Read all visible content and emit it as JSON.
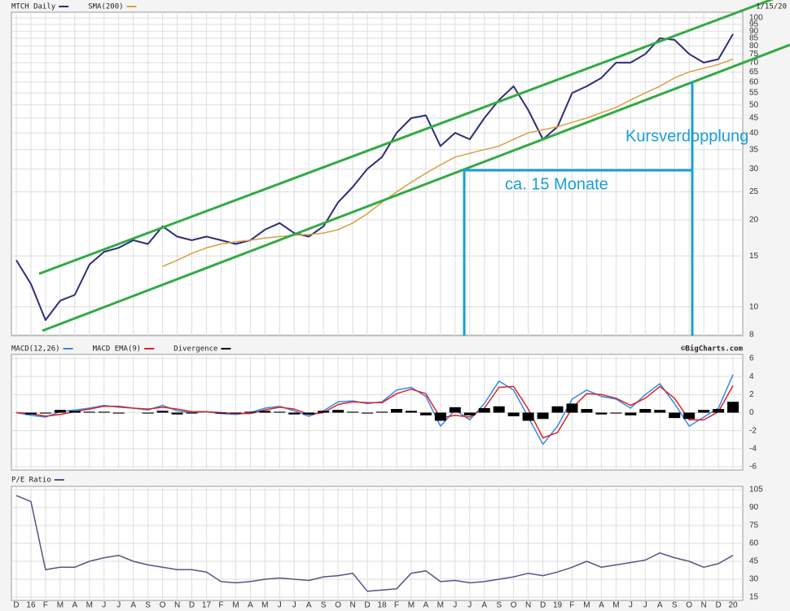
{
  "chart_data": [
    {
      "type": "line",
      "log": true,
      "grid": true,
      "date_label": "1/15/20",
      "annotations": [
        "Kursverdopplung",
        "ca. 15 Monate"
      ],
      "categories": [
        "D",
        "16",
        "F",
        "M",
        "A",
        "M",
        "J",
        "J",
        "A",
        "S",
        "O",
        "N",
        "D",
        "17",
        "F",
        "M",
        "A",
        "M",
        "J",
        "J",
        "A",
        "S",
        "O",
        "N",
        "D",
        "18",
        "F",
        "M",
        "A",
        "M",
        "J",
        "J",
        "A",
        "S",
        "O",
        "N",
        "D",
        "19",
        "F",
        "M",
        "A",
        "M",
        "J",
        "J",
        "A",
        "S",
        "O",
        "N",
        "D",
        "20"
      ],
      "ylim": [
        8,
        100
      ],
      "yticks": [
        8,
        10,
        15,
        20,
        25,
        30,
        35,
        40,
        45,
        50,
        55,
        60,
        65,
        70,
        75,
        80,
        85,
        90,
        95,
        100
      ],
      "series": [
        {
          "name": "MTCH Daily",
          "color": "#2e2e78",
          "values": [
            14.5,
            12,
            9,
            10.5,
            11,
            14,
            15.5,
            16,
            17,
            16.5,
            19,
            17.5,
            17,
            17.5,
            17,
            16.5,
            17,
            18.5,
            19.5,
            18,
            17.5,
            19,
            23,
            26,
            30,
            33,
            40,
            45,
            46,
            36,
            40,
            38,
            45,
            52,
            58,
            48,
            38,
            42,
            55,
            58,
            62,
            70,
            70,
            75,
            85,
            84,
            75,
            70,
            72,
            88
          ]
        },
        {
          "name": "SMA(200)",
          "color": "#d9a040",
          "values": [
            null,
            null,
            null,
            null,
            null,
            null,
            null,
            null,
            null,
            null,
            13.8,
            14.5,
            15.3,
            16,
            16.5,
            16.8,
            17,
            17.3,
            17.5,
            17.7,
            17.8,
            18,
            18.5,
            19.5,
            21,
            23,
            25,
            27,
            29,
            31,
            33,
            34,
            35,
            36,
            38,
            40,
            41,
            42,
            43.5,
            45,
            47,
            49,
            52,
            55,
            58,
            62,
            65,
            67,
            69,
            72
          ]
        }
      ]
    },
    {
      "type": "line",
      "grid": true,
      "source": "©BigCharts.com",
      "ylim": [
        -6,
        6
      ],
      "yticks": [
        -6,
        -4,
        -2,
        0,
        2,
        4,
        6
      ],
      "series": [
        {
          "name": "MACD(12,26)",
          "color": "#3388ee",
          "values": [
            0,
            -0.3,
            -0.5,
            0.1,
            0.3,
            0.5,
            0.8,
            0.6,
            0.5,
            0.3,
            0.8,
            0.2,
            0,
            0.1,
            -0.1,
            -0.2,
            0,
            0.5,
            0.7,
            0.2,
            -0.4,
            0.2,
            1.2,
            1.3,
            1,
            1.2,
            2.5,
            2.8,
            1.8,
            -1.5,
            0.3,
            -0.8,
            1,
            3.5,
            2.5,
            -0.5,
            -3.5,
            -1.5,
            1.5,
            2.5,
            1.8,
            1.5,
            0.5,
            2,
            3.2,
            1,
            -1.5,
            -0.5,
            0.5,
            4.2
          ]
        },
        {
          "name": "MACD EMA(9)",
          "color": "#dd2222",
          "values": [
            0,
            -0.1,
            -0.4,
            -0.2,
            0.1,
            0.4,
            0.7,
            0.7,
            0.5,
            0.4,
            0.6,
            0.4,
            0.1,
            0.1,
            0,
            -0.1,
            -0.1,
            0.3,
            0.6,
            0.4,
            -0.2,
            0,
            0.9,
            1.2,
            1.1,
            1.1,
            2.1,
            2.6,
            2.1,
            -0.6,
            -0.3,
            -0.5,
            0.5,
            2.8,
            2.9,
            0.4,
            -2.8,
            -2.2,
            0.5,
            2.1,
            2,
            1.6,
            0.8,
            1.6,
            2.9,
            1.6,
            -0.8,
            -0.8,
            0.1,
            3
          ]
        },
        {
          "name": "Divergence",
          "type": "bar",
          "color": "#000000",
          "values": [
            0,
            -0.2,
            -0.1,
            0.3,
            0.2,
            0.1,
            0.1,
            -0.1,
            0,
            -0.1,
            0.2,
            -0.2,
            -0.1,
            0,
            -0.1,
            -0.1,
            0.1,
            0.2,
            0.1,
            -0.2,
            -0.2,
            0.2,
            0.3,
            0.1,
            -0.1,
            0.1,
            0.4,
            0.2,
            -0.3,
            -0.9,
            0.6,
            -0.3,
            0.5,
            0.7,
            -0.4,
            -0.9,
            -0.7,
            0.7,
            1,
            0.4,
            -0.2,
            -0.1,
            -0.3,
            0.4,
            0.3,
            -0.6,
            -0.7,
            0.3,
            0.4,
            1.2
          ]
        }
      ]
    },
    {
      "type": "line",
      "grid": true,
      "ylim": [
        15,
        105
      ],
      "yticks": [
        15,
        30,
        45,
        60,
        75,
        90,
        105
      ],
      "series": [
        {
          "name": "P/E Ratio",
          "color": "#555588",
          "values": [
            100,
            95,
            38,
            40,
            40,
            45,
            48,
            50,
            45,
            42,
            40,
            38,
            38,
            36,
            28,
            27,
            28,
            30,
            31,
            30,
            29,
            32,
            33,
            35,
            20,
            21,
            22,
            35,
            37,
            28,
            29,
            27,
            28,
            30,
            32,
            35,
            33,
            36,
            40,
            45,
            40,
            42,
            44,
            46,
            52,
            48,
            45,
            40,
            43,
            50
          ]
        }
      ]
    }
  ]
}
